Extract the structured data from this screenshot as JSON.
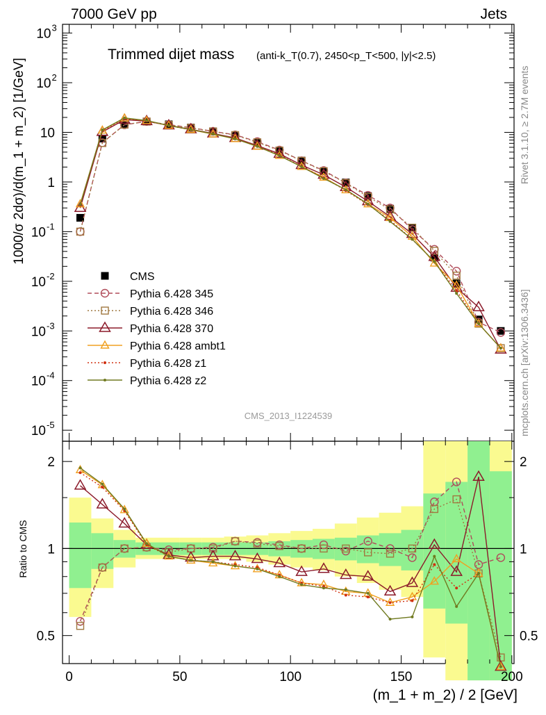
{
  "header": {
    "left": "7000 GeV pp",
    "right": "Jets",
    "side_top": "Rivet 3.1.10, ≥ 2.7M events",
    "side_bottom": "mcplots.cern.ch [arXiv:1306.3436]",
    "analysis": "CMS_2013_I1224539"
  },
  "title": {
    "main": "Trimmed dijet mass",
    "sub": "(anti-k_T(0.7), 2450<p_T<500, |y|<2.5)"
  },
  "axes": {
    "ylabel_top": "1000/σ 2dσ)/d(m_1 + m_2) [1/GeV]",
    "ylabel_bottom": "Ratio to CMS",
    "xlabel": "(m_1 + m_2) / 2 [GeV]",
    "xticks": [
      "0",
      "50",
      "100",
      "150",
      "200"
    ],
    "yticks_top": [
      "10^-5",
      "10^-4",
      "10^-3",
      "10^-2",
      "10^-1",
      "1",
      "10",
      "10^2",
      "10^3"
    ],
    "yticks_bottom": [
      "0.5",
      "1",
      "2"
    ]
  },
  "legend": {
    "cms": "CMS",
    "s345": "Pythia 6.428 345",
    "s346": "Pythia 6.428 346",
    "s370": "Pythia 6.428 370",
    "sambt1": "Pythia 6.428 ambt1",
    "sz1": "Pythia 6.428 z1",
    "sz2": "Pythia 6.428 z2"
  },
  "colors": {
    "cms": "#000000",
    "s345": "#b04c5a",
    "s346": "#a07840",
    "s370": "#8b1a2a",
    "sambt1": "#f0a020",
    "sz1": "#d03010",
    "sz2": "#707a20",
    "band_inner": "#90f090",
    "band_outer": "#fafa90"
  },
  "chart_data": [
    {
      "type": "line",
      "panel": "main",
      "log_y": true,
      "xlim": [
        -3,
        201
      ],
      "ylim": [
        6e-06,
        1500
      ],
      "x": [
        5,
        15,
        25,
        35,
        45,
        55,
        65,
        75,
        85,
        95,
        105,
        115,
        125,
        135,
        145,
        155,
        165,
        175,
        185,
        195
      ],
      "series": [
        {
          "name": "CMS",
          "values": [
            0.19,
            7.5,
            14.5,
            16.5,
            14.5,
            12.5,
            10.5,
            8.5,
            6.2,
            4.3,
            2.7,
            1.65,
            0.98,
            0.52,
            0.29,
            0.12,
            0.03,
            0.009,
            0.0017,
            0.001
          ]
        },
        {
          "name": "Pythia 6.428 345",
          "values": [
            0.1,
            6.2,
            14.2,
            16.6,
            14.3,
            12.4,
            10.5,
            8.9,
            6.5,
            4.4,
            2.68,
            1.7,
            0.96,
            0.54,
            0.3,
            0.11,
            0.044,
            0.016,
            0.0015,
            0.00093
          ]
        },
        {
          "name": "Pythia 6.428 346",
          "values": [
            0.1,
            6.1,
            14.3,
            16.5,
            14.1,
            12.3,
            10.4,
            8.8,
            6.3,
            4.3,
            2.67,
            1.65,
            0.95,
            0.5,
            0.28,
            0.12,
            0.041,
            0.013,
            0.0014,
            0.00045
          ]
        },
        {
          "name": "Pythia 6.428 370",
          "values": [
            0.3,
            10.2,
            18,
            16.8,
            13.8,
            11.5,
            9.5,
            7.7,
            5.4,
            3.7,
            2.2,
            1.4,
            0.79,
            0.41,
            0.2,
            0.09,
            0.031,
            0.0074,
            0.003,
            0.00042
          ]
        },
        {
          "name": "Pythia 6.428 ambt1",
          "values": [
            0.36,
            11,
            19.3,
            17.2,
            13.7,
            11.3,
            9.2,
            7.4,
            5.2,
            3.4,
            2.04,
            1.24,
            0.69,
            0.36,
            0.19,
            0.08,
            0.023,
            0.0083,
            0.0014,
            0.00045
          ]
        },
        {
          "name": "Pythia 6.428 z1",
          "values": [
            0.34,
            10.8,
            19,
            17,
            13.6,
            11.3,
            9.4,
            7.5,
            5.3,
            3.5,
            2.05,
            1.23,
            0.67,
            0.35,
            0.17,
            0.07,
            0.025,
            0.0065,
            0.0014,
            0.00045
          ]
        },
        {
          "name": "Pythia 6.428 z2",
          "values": [
            0.35,
            11.2,
            19.5,
            17.3,
            13.7,
            11.4,
            9.3,
            7.4,
            5.2,
            3.4,
            2.03,
            1.18,
            0.7,
            0.36,
            0.16,
            0.07,
            0.025,
            0.0057,
            0.0014,
            0.00045
          ]
        }
      ]
    },
    {
      "type": "line",
      "panel": "ratio",
      "log_y": true,
      "xlim": [
        -3,
        201
      ],
      "ylim": [
        0.4,
        2.35
      ],
      "x": [
        5,
        15,
        25,
        35,
        45,
        55,
        65,
        75,
        85,
        95,
        105,
        115,
        125,
        135,
        145,
        155,
        165,
        175,
        185,
        195
      ],
      "bands": {
        "inner_lo": [
          0.73,
          0.85,
          0.93,
          0.95,
          0.95,
          0.95,
          0.95,
          0.95,
          0.95,
          0.94,
          0.93,
          0.92,
          0.91,
          0.89,
          0.87,
          0.84,
          0.62,
          0.55,
          0.35,
          0.35
        ],
        "inner_hi": [
          1.23,
          1.13,
          1.07,
          1.05,
          1.05,
          1.05,
          1.05,
          1.05,
          1.05,
          1.06,
          1.07,
          1.08,
          1.09,
          1.11,
          1.13,
          1.16,
          1.55,
          1.7,
          2.35,
          1.85
        ],
        "outer_lo": [
          0.58,
          0.73,
          0.86,
          0.92,
          0.92,
          0.92,
          0.92,
          0.92,
          0.9,
          0.88,
          0.86,
          0.84,
          0.8,
          0.76,
          0.72,
          0.68,
          0.42,
          0.35,
          0.35,
          0.35
        ],
        "outer_hi": [
          1.5,
          1.27,
          1.16,
          1.09,
          1.09,
          1.09,
          1.09,
          1.1,
          1.11,
          1.13,
          1.15,
          1.17,
          1.22,
          1.28,
          1.33,
          1.4,
          2.35,
          2.35,
          2.35,
          2.35
        ]
      },
      "series": [
        {
          "name": "Pythia 6.428 345",
          "values": [
            0.56,
            0.86,
            1.0,
            1.01,
            0.99,
            1.0,
            1.01,
            1.06,
            1.05,
            1.03,
            1.0,
            1.03,
            0.98,
            1.06,
            1.0,
            0.93,
            1.45,
            1.7,
            0.88,
            0.93
          ]
        },
        {
          "name": "Pythia 6.428 346",
          "values": [
            0.54,
            0.86,
            1.0,
            1.01,
            0.97,
            1.0,
            1.0,
            1.06,
            1.04,
            1.02,
            1.0,
            1.0,
            1.0,
            0.97,
            0.96,
            1.0,
            1.37,
            1.48,
            0.82,
            0.42
          ]
        },
        {
          "name": "Pythia 6.428 370",
          "values": [
            1.65,
            1.42,
            1.22,
            1.03,
            0.95,
            0.93,
            0.94,
            0.94,
            0.92,
            0.89,
            0.83,
            0.85,
            0.81,
            0.8,
            0.71,
            0.76,
            1.03,
            0.83,
            1.77,
            0.39
          ]
        },
        {
          "name": "Pythia 6.428 ambt1",
          "values": [
            1.87,
            1.66,
            1.36,
            1.04,
            0.94,
            0.91,
            0.89,
            0.87,
            0.85,
            0.81,
            0.76,
            0.75,
            0.71,
            0.7,
            0.65,
            0.68,
            0.77,
            0.92,
            0.82,
            0.39
          ]
        },
        {
          "name": "Pythia 6.428 z1",
          "values": [
            1.83,
            1.63,
            1.35,
            1.03,
            0.94,
            0.91,
            0.9,
            0.88,
            0.86,
            0.81,
            0.76,
            0.74,
            0.69,
            0.68,
            0.65,
            0.66,
            0.88,
            0.73,
            0.82,
            0.39
          ]
        },
        {
          "name": "Pythia 6.428 z2",
          "values": [
            1.9,
            1.67,
            1.37,
            1.04,
            0.94,
            0.91,
            0.9,
            0.87,
            0.85,
            0.8,
            0.75,
            0.73,
            0.72,
            0.7,
            0.57,
            0.58,
            0.94,
            0.63,
            0.82,
            0.39
          ]
        }
      ]
    }
  ]
}
